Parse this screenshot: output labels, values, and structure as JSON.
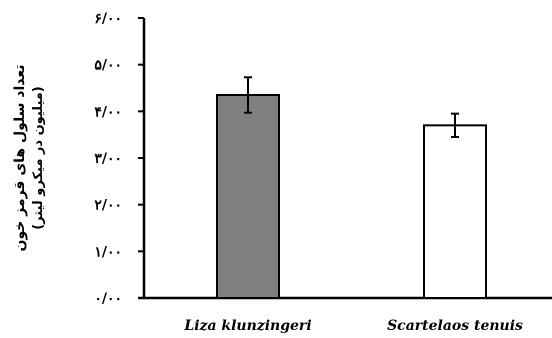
{
  "chart_data": {
    "type": "bar",
    "categories": [
      "Liza klunzingeri",
      "Scartelaos tenuis"
    ],
    "values": [
      4.35,
      3.7
    ],
    "errors": [
      0.38,
      0.25
    ],
    "bar_colors": [
      "#808080",
      "#ffffff"
    ],
    "ylim": [
      0,
      6
    ],
    "yticks": [
      0,
      1,
      2,
      3,
      4,
      5,
      6
    ],
    "ytick_labels": [
      "۰/۰۰",
      "۱/۰۰",
      "۲/۰۰",
      "۳/۰۰",
      "۴/۰۰",
      "۵/۰۰",
      "۶/۰۰"
    ],
    "ylabel": "تعداد سلول های قرمز خون",
    "ylabel_sub": "(میلیون در میکرو لیتر)",
    "grid": false,
    "legend": "none"
  }
}
